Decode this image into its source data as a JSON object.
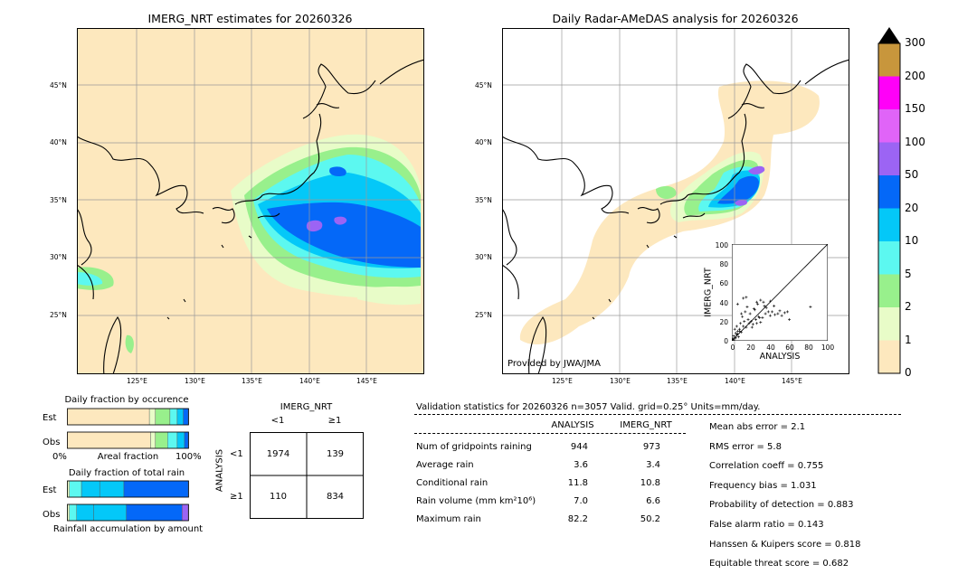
{
  "left_map": {
    "title": "IMERG_NRT estimates for 20260326",
    "lon_ticks": [
      "125°E",
      "130°E",
      "135°E",
      "140°E",
      "145°E"
    ],
    "lat_ticks": [
      "45°N",
      "40°N",
      "35°N",
      "30°N",
      "25°N"
    ]
  },
  "right_map": {
    "title": "Daily Radar-AMeDAS analysis for 20260326",
    "lon_ticks": [
      "125°E",
      "130°E",
      "135°E",
      "140°E",
      "145°E"
    ],
    "lat_ticks": [
      "45°N",
      "40°N",
      "35°N",
      "30°N",
      "25°N"
    ],
    "credit": "Provided by JWA/JMA"
  },
  "colorbar": {
    "levels": [
      "0",
      "1",
      "2",
      "5",
      "10",
      "20",
      "50",
      "100",
      "150",
      "200",
      "300"
    ],
    "colors": [
      "#fde8be",
      "#e8fcc8",
      "#98f08c",
      "#5cf8f0",
      "#04c8f8",
      "#0468f8",
      "#9c64f4",
      "#e064f8",
      "#ff00f8",
      "#c8963c"
    ]
  },
  "scatter_inset": {
    "xlabel": "ANALYSIS",
    "ylabel": "IMERG_NRT",
    "ticks": [
      "0",
      "20",
      "40",
      "60",
      "80",
      "100"
    ]
  },
  "chart_data": [
    {
      "type": "scatter",
      "title": "",
      "xlabel": "ANALYSIS",
      "ylabel": "IMERG_NRT",
      "xlim": [
        0,
        100
      ],
      "ylim": [
        0,
        100
      ],
      "x": [
        1,
        2,
        3,
        4,
        5,
        6,
        8,
        10,
        12,
        15,
        18,
        20,
        22,
        25,
        28,
        30,
        32,
        35,
        38,
        40,
        45,
        50,
        55,
        60,
        3,
        5,
        7,
        9,
        11,
        14,
        16,
        19,
        24,
        27,
        33,
        36,
        42,
        48,
        52,
        2,
        4,
        6,
        8,
        13,
        17,
        21,
        26,
        30,
        34,
        12,
        26,
        44,
        58,
        82,
        10,
        6,
        15,
        23,
        29,
        40
      ],
      "y": [
        2,
        5,
        3,
        8,
        6,
        10,
        12,
        9,
        15,
        14,
        18,
        20,
        17,
        22,
        25,
        19,
        24,
        28,
        30,
        26,
        27,
        31,
        29,
        22,
        12,
        15,
        4,
        18,
        25,
        30,
        35,
        28,
        32,
        38,
        40,
        34,
        30,
        28,
        26,
        1,
        3,
        7,
        10,
        20,
        22,
        14,
        18,
        42,
        36,
        44,
        40,
        36,
        30,
        35,
        28,
        38,
        45,
        33,
        24,
        41
      ]
    },
    {
      "type": "bar",
      "title": "Daily fraction by occurence",
      "categories": [
        "Est",
        "Obs"
      ],
      "xlabel": "Areal fraction",
      "xlim": [
        0,
        100
      ],
      "series": [
        {
          "values": [
            68,
            69
          ]
        },
        {
          "values": [
            5,
            4
          ]
        },
        {
          "values": [
            12,
            10
          ]
        },
        {
          "values": [
            6,
            8
          ]
        },
        {
          "values": [
            5,
            6
          ]
        },
        {
          "values": [
            4,
            3
          ]
        }
      ]
    },
    {
      "type": "bar",
      "title": "Daily fraction of total rain",
      "categories": [
        "Est",
        "Obs"
      ],
      "xlabel": "Rainfall accumulation by amount",
      "series": [
        {
          "values": [
            2,
            2
          ]
        },
        {
          "values": [
            10,
            6
          ]
        },
        {
          "values": [
            15,
            14
          ]
        },
        {
          "values": [
            20,
            27
          ]
        },
        {
          "values": [
            53,
            46
          ]
        },
        {
          "values": [
            0,
            5
          ]
        }
      ]
    }
  ],
  "contingency": {
    "title": "IMERG_NRT",
    "col_labels": [
      "<1",
      "≥1"
    ],
    "row_title": "ANALYSIS",
    "row_labels": [
      "<1",
      "≥1"
    ],
    "cells": [
      [
        "1974",
        "139"
      ],
      [
        "110",
        "834"
      ]
    ]
  },
  "validation": {
    "header": "Validation statistics for 20260326  n=3057 Valid. grid=0.25° Units=mm/day.",
    "col_analysis": "ANALYSIS",
    "col_imerg": "IMERG_NRT",
    "rows": [
      {
        "label": "Num of gridpoints raining",
        "analysis": "944",
        "imerg": "973"
      },
      {
        "label": "Average rain",
        "analysis": "3.6",
        "imerg": "3.4"
      },
      {
        "label": "Conditional rain",
        "analysis": "11.8",
        "imerg": "10.8"
      },
      {
        "label": "Rain volume (mm km²10⁶)",
        "analysis": "7.0",
        "imerg": "6.6"
      },
      {
        "label": "Maximum rain",
        "analysis": "82.2",
        "imerg": "50.2"
      }
    ],
    "scores": [
      "Mean abs error =    2.1",
      "RMS error =    5.8",
      "Correlation coeff =  0.755",
      "Frequency bias =  1.031",
      "Probability of detection =  0.883",
      "False alarm ratio =  0.143",
      "Hanssen & Kuipers score =  0.818",
      "Equitable threat score =  0.682"
    ]
  },
  "occurrence_panel": {
    "title": "Daily fraction by occurence",
    "row_est": "Est",
    "row_obs": "Obs",
    "tick_0": "0%",
    "tick_100": "100%",
    "xlabel": "Areal fraction"
  },
  "total_rain_panel": {
    "title": "Daily fraction of total rain",
    "row_est": "Est",
    "row_obs": "Obs",
    "xlabel": "Rainfall accumulation by amount"
  }
}
